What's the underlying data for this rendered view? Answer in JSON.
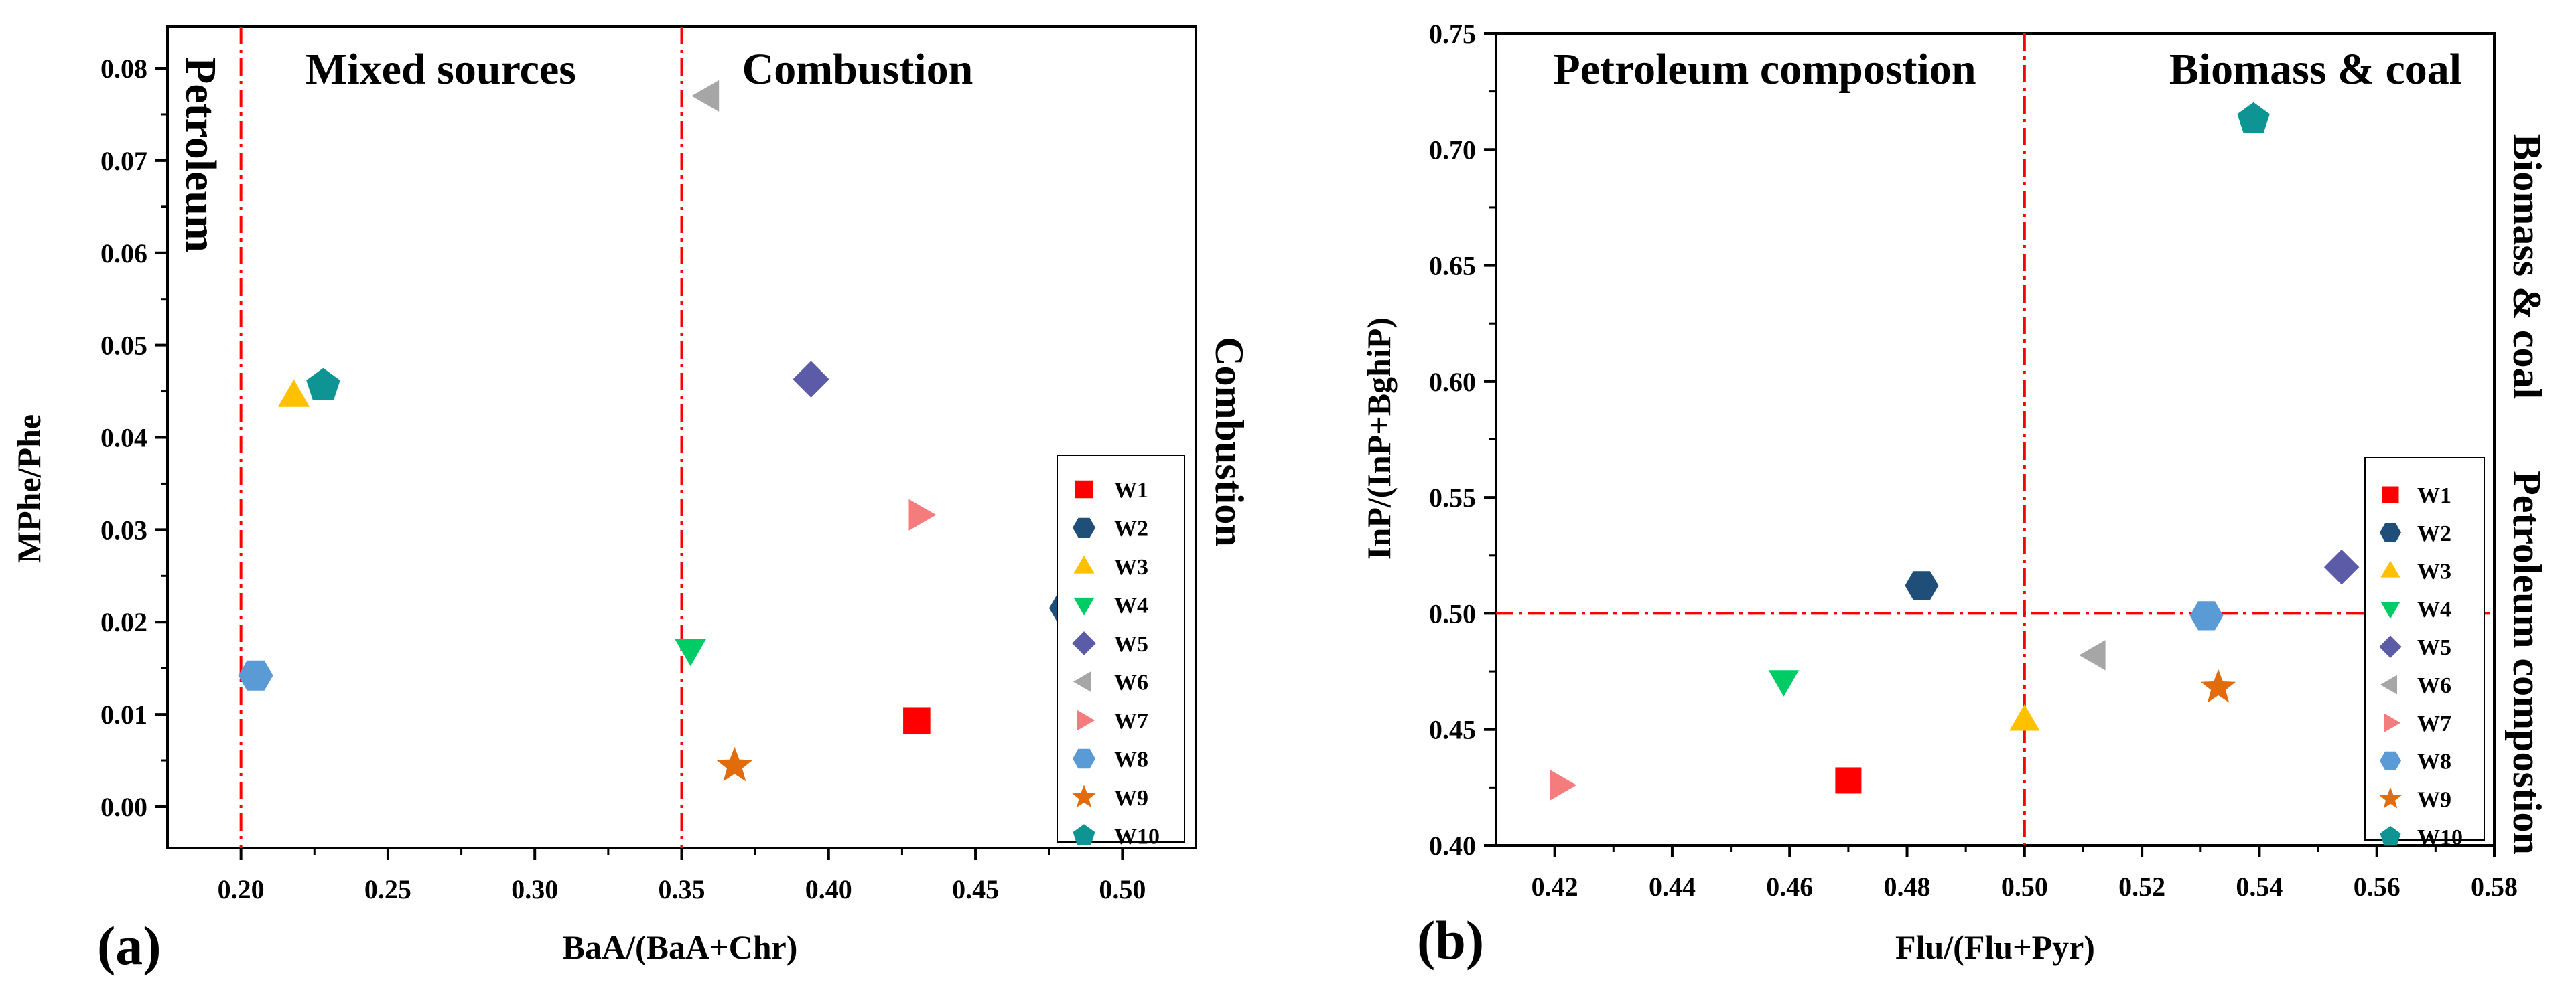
{
  "chart_data": [
    {
      "type": "scatter",
      "panel_label": "(a)",
      "xlabel": "BaA/(BaA+Chr)",
      "ylabel": "MPhe/Phe",
      "xlim": [
        0.175,
        0.525
      ],
      "ylim": [
        -0.0045,
        0.0845
      ],
      "xticks": [
        "0.20",
        "0.25",
        "0.30",
        "0.35",
        "0.40",
        "0.45",
        "0.50"
      ],
      "yticks": [
        "0.00",
        "0.01",
        "0.02",
        "0.03",
        "0.04",
        "0.05",
        "0.06",
        "0.07",
        "0.08"
      ],
      "threshold_lines": [
        {
          "axis": "x",
          "value": 0.2
        },
        {
          "axis": "x",
          "value": 0.35
        }
      ],
      "region_labels": [
        {
          "text": "Petroleum",
          "orientation": "vertical"
        },
        {
          "text": "Mixed sources",
          "orientation": "horizontal"
        },
        {
          "text": "Combustion",
          "orientation": "horizontal"
        }
      ],
      "side_label": "Combustion",
      "legend_placement": "bottom-right",
      "series": [
        {
          "name": "W1",
          "marker": "square",
          "color": "#ff0000",
          "x": 0.43,
          "y": 0.0093
        },
        {
          "name": "W2",
          "marker": "hexagon",
          "color": "#1f4e79",
          "x": 0.481,
          "y": 0.0215
        },
        {
          "name": "W3",
          "marker": "triangle-up",
          "color": "#ffc000",
          "x": 0.218,
          "y": 0.0445
        },
        {
          "name": "W4",
          "marker": "triangle-down",
          "color": "#00cc66",
          "x": 0.353,
          "y": 0.017
        },
        {
          "name": "W5",
          "marker": "diamond",
          "color": "#5b5ba8",
          "x": 0.394,
          "y": 0.0463
        },
        {
          "name": "W6",
          "marker": "triangle-left",
          "color": "#a6a6a6",
          "x": 0.359,
          "y": 0.077
        },
        {
          "name": "W7",
          "marker": "triangle-right",
          "color": "#f47c7c",
          "x": 0.431,
          "y": 0.0316
        },
        {
          "name": "W8",
          "marker": "hexagon",
          "color": "#5b9bd5",
          "x": 0.205,
          "y": 0.0142
        },
        {
          "name": "W9",
          "marker": "star",
          "color": "#e36c0a",
          "x": 0.368,
          "y": 0.0044
        },
        {
          "name": "W10",
          "marker": "pentagon",
          "color": "#0f9494",
          "x": 0.228,
          "y": 0.0456
        }
      ]
    },
    {
      "type": "scatter",
      "panel_label": "(b)",
      "xlabel": "Flu/(Flu+Pyr)",
      "ylabel": "InP/(InP+BghiP)",
      "xlim": [
        0.41,
        0.58
      ],
      "ylim": [
        0.4,
        0.75
      ],
      "xticks": [
        "0.42",
        "0.44",
        "0.46",
        "0.48",
        "0.50",
        "0.52",
        "0.54",
        "0.56",
        "0.58"
      ],
      "yticks": [
        "0.40",
        "0.45",
        "0.50",
        "0.55",
        "0.60",
        "0.65",
        "0.70",
        "0.75"
      ],
      "threshold_lines": [
        {
          "axis": "x",
          "value": 0.5
        },
        {
          "axis": "y",
          "value": 0.5
        }
      ],
      "region_labels": [
        {
          "text": "Petroleum compostion",
          "orientation": "horizontal"
        },
        {
          "text": "Biomass & coal",
          "orientation": "horizontal"
        }
      ],
      "side_labels": [
        {
          "text": "Biomass & coal"
        },
        {
          "text": "Petroleum compostion"
        }
      ],
      "legend_placement": "bottom-right",
      "series": [
        {
          "name": "W1",
          "marker": "square",
          "color": "#ff0000",
          "x": 0.47,
          "y": 0.428
        },
        {
          "name": "W2",
          "marker": "hexagon",
          "color": "#1f4e79",
          "x": 0.4825,
          "y": 0.512
        },
        {
          "name": "W3",
          "marker": "triangle-up",
          "color": "#ffc000",
          "x": 0.5,
          "y": 0.454
        },
        {
          "name": "W4",
          "marker": "triangle-down",
          "color": "#00cc66",
          "x": 0.459,
          "y": 0.471
        },
        {
          "name": "W5",
          "marker": "diamond",
          "color": "#5b5ba8",
          "x": 0.554,
          "y": 0.52
        },
        {
          "name": "W6",
          "marker": "triangle-left",
          "color": "#a6a6a6",
          "x": 0.512,
          "y": 0.482
        },
        {
          "name": "W7",
          "marker": "triangle-right",
          "color": "#f47c7c",
          "x": 0.421,
          "y": 0.426
        },
        {
          "name": "W8",
          "marker": "hexagon",
          "color": "#5b9bd5",
          "x": 0.531,
          "y": 0.499
        },
        {
          "name": "W9",
          "marker": "star",
          "color": "#e36c0a",
          "x": 0.533,
          "y": 0.468
        },
        {
          "name": "W10",
          "marker": "pentagon",
          "color": "#0f9494",
          "x": 0.539,
          "y": 0.713
        }
      ]
    }
  ]
}
